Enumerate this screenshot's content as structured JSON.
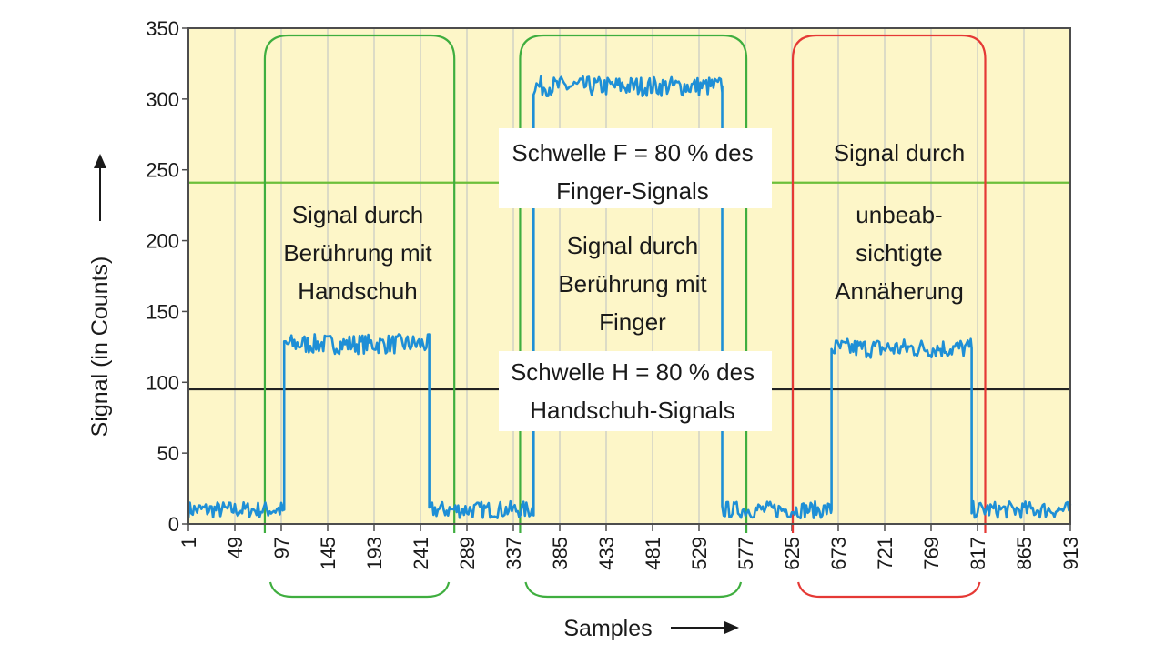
{
  "chart_data": {
    "type": "line",
    "xlabel": "Samples",
    "ylabel": "Signal (in Counts)",
    "ylim": [
      0,
      350
    ],
    "xlim": [
      1,
      913
    ],
    "y_ticks": [
      "0",
      "50",
      "100",
      "150",
      "200",
      "250",
      "300",
      "350"
    ],
    "x_ticks": [
      "1",
      "49",
      "97",
      "145",
      "193",
      "241",
      "289",
      "337",
      "385",
      "433",
      "481",
      "529",
      "577",
      "625",
      "673",
      "721",
      "769",
      "817",
      "865",
      "913"
    ],
    "grid": "vertical",
    "background": "#fdf6c8",
    "series": [
      {
        "color": "#1e8fd6",
        "segments": [
          {
            "x_start": 1,
            "x_end": 100,
            "level": 10
          },
          {
            "x_start": 100,
            "x_end": 250,
            "level": 127
          },
          {
            "x_start": 250,
            "x_end": 358,
            "level": 10
          },
          {
            "x_start": 358,
            "x_end": 553,
            "level": 309
          },
          {
            "x_start": 553,
            "x_end": 666,
            "level": 10
          },
          {
            "x_start": 666,
            "x_end": 811,
            "level": 124
          },
          {
            "x_start": 811,
            "x_end": 913,
            "level": 10
          }
        ]
      }
    ],
    "thresholds": [
      {
        "value": 241,
        "color": "#6cbf3a",
        "label_lines": [
          "Schwelle F = 80 % des",
          "Finger-Signals"
        ]
      },
      {
        "value": 95,
        "color": "#222222",
        "label_lines": [
          "Schwelle H = 80 % des",
          "Handschuh-Signals"
        ]
      }
    ],
    "regions": [
      {
        "x_start": 80,
        "x_end": 276,
        "color": "#3fae3f",
        "label_lines": [
          "Signal durch",
          "Berührung mit",
          "Handschuh"
        ]
      },
      {
        "x_start": 344,
        "x_end": 578,
        "color": "#3fae3f",
        "label_lines": [
          "Signal durch",
          "Berührung mit",
          "Finger"
        ]
      },
      {
        "x_start": 626,
        "x_end": 825,
        "color": "#e53935",
        "label_lines": [
          "Signal durch",
          "unbeab-",
          "sichtigte",
          "Annäherung"
        ]
      }
    ]
  }
}
